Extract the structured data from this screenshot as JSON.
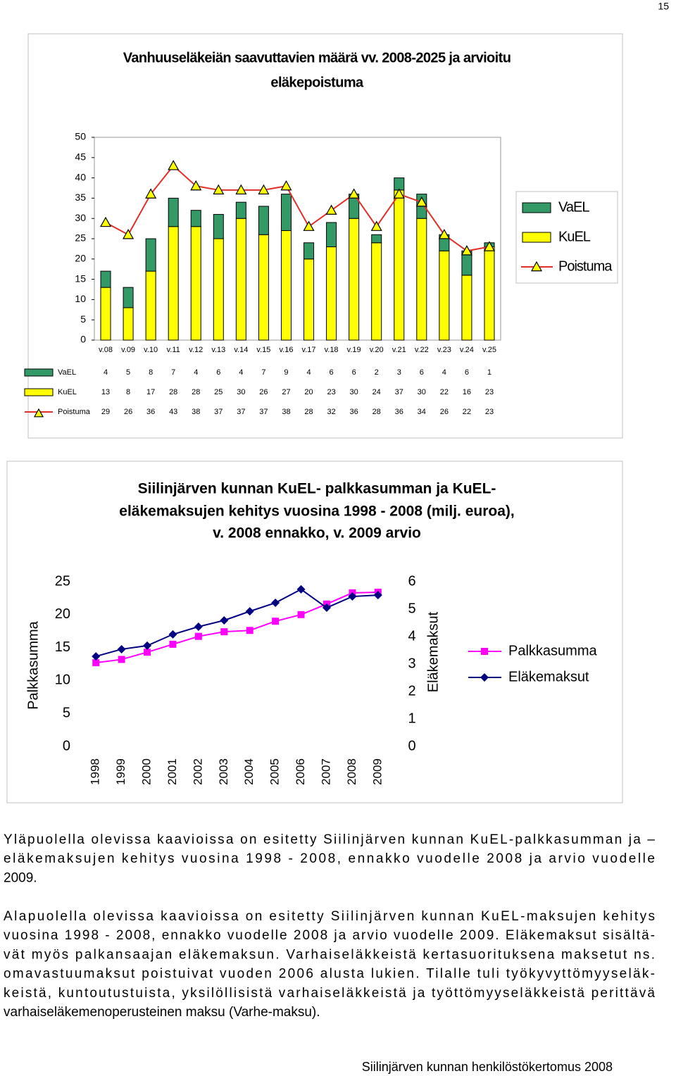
{
  "page_number": "15",
  "chart_data": [
    {
      "type": "bar",
      "stacked": true,
      "title": [
        "Vanhuuseläkeiän saavuttavien määrä vv. 2008-2025 ja arvioitu",
        "eläkepoistuma"
      ],
      "categories": [
        "v.08",
        "v.09",
        "v.10",
        "v.11",
        "v.12",
        "v.13",
        "v.14",
        "v.15",
        "v.16",
        "v.17",
        "v.18",
        "v.19",
        "v.20",
        "v.21",
        "v.22",
        "v.23",
        "v.24",
        "v.25"
      ],
      "series": [
        {
          "name": "VaEL",
          "color": "#339966",
          "values": [
            4,
            5,
            8,
            7,
            4,
            6,
            4,
            7,
            9,
            4,
            6,
            6,
            2,
            3,
            6,
            4,
            6,
            1
          ]
        },
        {
          "name": "KuEL",
          "color": "#ffff00",
          "values": [
            13,
            8,
            17,
            28,
            28,
            25,
            30,
            26,
            27,
            20,
            23,
            30,
            24,
            37,
            30,
            22,
            16,
            23
          ]
        },
        {
          "name": "Poistuma",
          "type": "line",
          "color": "#e0302a",
          "marker": "triangle",
          "marker_color": "#ffff00",
          "values": [
            29,
            26,
            36,
            43,
            38,
            37,
            37,
            37,
            38,
            28,
            32,
            36,
            28,
            36,
            34,
            26,
            22,
            23
          ]
        }
      ],
      "ylim": [
        0,
        50
      ],
      "yticks": [
        0,
        5,
        10,
        15,
        20,
        25,
        30,
        35,
        40,
        45,
        50
      ],
      "data_table": true,
      "legend": "right"
    },
    {
      "type": "line",
      "title": [
        "Siilinjärven kunnan KuEL- palkkasumman ja KuEL-",
        "eläkemaksujen kehitys vuosina 1998 - 2008 (milj. euroa),",
        "v. 2008 ennakko, v. 2009 arvio"
      ],
      "categories": [
        "1998",
        "1999",
        "2000",
        "2001",
        "2002",
        "2003",
        "2004",
        "2005",
        "2006",
        "2007",
        "2008",
        "2009"
      ],
      "y_label": "Palkkasumma",
      "y2_label": "Eläkemaksut",
      "series": [
        {
          "name": "Palkkasumma",
          "color": "#ff00ff",
          "marker": "square",
          "values": [
            12.7,
            13.2,
            14.3,
            15.5,
            16.7,
            17.4,
            17.6,
            19.0,
            20.0,
            21.6,
            23.3,
            23.4
          ]
        },
        {
          "name": "Eläkemaksut",
          "color": "#000080",
          "marker": "diamond",
          "axis": "y2",
          "values": [
            3.28,
            3.54,
            3.67,
            4.08,
            4.36,
            4.59,
            4.92,
            5.23,
            5.72,
            5.05,
            5.46,
            5.51
          ]
        }
      ],
      "ylim": [
        0,
        25
      ],
      "yticks": [
        0,
        5,
        10,
        15,
        20,
        25
      ],
      "y2lim": [
        0,
        6
      ],
      "y2ticks": [
        0,
        1,
        2,
        3,
        4,
        5,
        6
      ],
      "legend": "right"
    }
  ],
  "paragraphs": [
    [
      "Yläpuolella olevissa kaavioissa on esitetty Siilinjärven kunnan KuEL-palkkasumman ja –",
      "eläkemaksujen kehitys vuosina 1998 - 2008, ennakko vuodelle 2008 ja arvio vuodelle",
      "2009."
    ],
    [
      "Alapuolella olevissa kaavioissa on esitetty Siilinjärven kunnan KuEL-maksujen kehitys",
      "vuosina 1998 - 2008, ennakko vuodelle 2008 ja arvio vuodelle 2009. Eläkemaksut sisältä-",
      "vät myös palkansaajan eläkemaksun. Varhaiseläkkeistä kertasuorituksena maksetut ns.",
      "omavastuumaksut poistuivat vuoden 2006 alusta lukien. Tilalle tuli työkyvyttömyyseläk-",
      "keistä, kuntoutustuista, yksilöllisistä varhaiseläkkeistä ja työttömyyseläkkeistä perittävä",
      "varhaiseläkemenoperusteinen maksu (Varhe-maksu)."
    ]
  ],
  "footer": "Siilinjärven kunnan henkilöstökertomus 2008"
}
